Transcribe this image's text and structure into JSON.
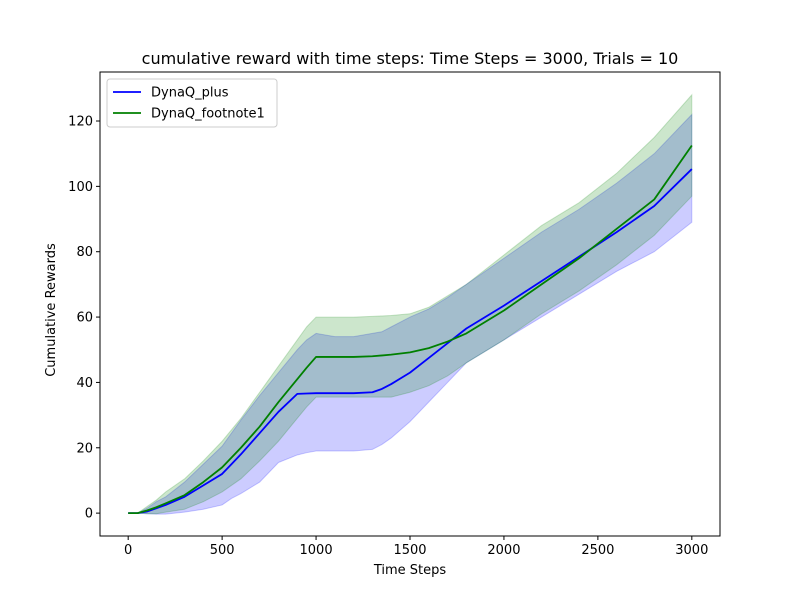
{
  "chart_data": {
    "type": "line",
    "title": "cumulative reward with time steps: Time Steps = 3000, Trials = 10",
    "xlabel": "Time Steps",
    "ylabel": "Cumulative Rewards",
    "xlim": [
      -150,
      3150
    ],
    "ylim": [
      -7,
      135
    ],
    "xticks": [
      0,
      500,
      1000,
      1500,
      2000,
      2500,
      3000
    ],
    "yticks": [
      0,
      20,
      40,
      60,
      80,
      100,
      120
    ],
    "grid": false,
    "legend_position": "top-left",
    "series": [
      {
        "name": "DynaQ_plus",
        "color": "#0000ff",
        "band_color": "#0000ff",
        "x": [
          0,
          50,
          100,
          150,
          200,
          300,
          400,
          500,
          550,
          600,
          700,
          800,
          900,
          950,
          1000,
          1100,
          1200,
          1300,
          1350,
          1400,
          1500,
          1600,
          1700,
          1800,
          2000,
          2200,
          2400,
          2600,
          2800,
          3000
        ],
        "mean": [
          0,
          0,
          0.5,
          1.5,
          2.5,
          5,
          8.5,
          12,
          15,
          18,
          24.5,
          31,
          36.5,
          36.6,
          36.7,
          36.7,
          36.7,
          37,
          38,
          39.5,
          43,
          47.5,
          52,
          56.5,
          63.5,
          71,
          78.5,
          86,
          94,
          105.3
        ],
        "lower": [
          0,
          0,
          -0.2,
          -0.3,
          -0.3,
          0.3,
          1.2,
          2.5,
          4.5,
          6,
          9.5,
          15.5,
          17.8,
          18.5,
          19,
          19,
          19,
          19.5,
          21,
          23,
          28,
          34,
          40,
          46,
          53,
          60,
          67,
          74,
          80,
          89
        ],
        "upper": [
          0,
          0,
          1.5,
          3.5,
          5,
          9.5,
          15,
          20.5,
          24.5,
          28.5,
          36,
          43,
          50,
          53,
          55,
          54,
          54,
          55,
          55.5,
          57,
          60,
          62.5,
          66,
          70,
          78,
          86,
          93,
          101,
          110,
          122
        ]
      },
      {
        "name": "DynaQ_footnote1",
        "color": "#008000",
        "band_color": "#008000",
        "x": [
          0,
          50,
          100,
          150,
          200,
          300,
          400,
          500,
          600,
          700,
          800,
          900,
          950,
          1000,
          1100,
          1200,
          1300,
          1400,
          1500,
          1600,
          1700,
          1800,
          2000,
          2200,
          2400,
          2600,
          2800,
          3000
        ],
        "mean": [
          0,
          0,
          0.8,
          1.8,
          3,
          5.5,
          9.5,
          14,
          20,
          26.5,
          34,
          41,
          44.5,
          47.8,
          47.8,
          47.8,
          48,
          48.5,
          49.2,
          50.5,
          52.5,
          55,
          62,
          70,
          78,
          87,
          96,
          112.5
        ],
        "lower": [
          0,
          0,
          -0.2,
          -0.2,
          0.3,
          1.2,
          3.5,
          6.5,
          10.5,
          16,
          22,
          29,
          32.5,
          35.5,
          35.5,
          35.5,
          35.5,
          35.5,
          37,
          39,
          42,
          46,
          53,
          61,
          68,
          76,
          85,
          97
        ],
        "upper": [
          0,
          0,
          2,
          4,
          6.5,
          10.5,
          16,
          22,
          29,
          37,
          45,
          53,
          57,
          60,
          60,
          60,
          60.2,
          60.5,
          61,
          63,
          66.5,
          70,
          79,
          88,
          95,
          104,
          115,
          128
        ]
      }
    ]
  }
}
